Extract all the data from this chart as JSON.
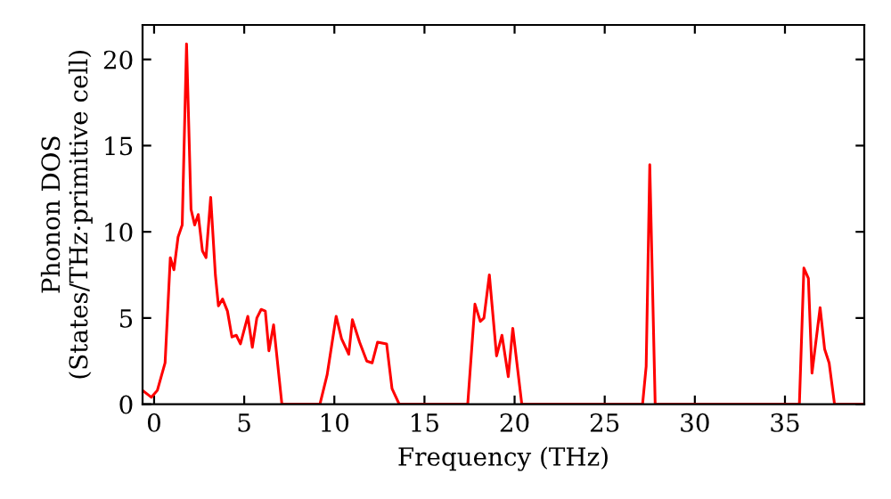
{
  "chart_data": {
    "type": "line",
    "xlabel": "Frequency (THz)",
    "ylabel": "Phonon DOS\n(States/THz·primitive cell)",
    "x": [
      -0.64,
      -0.15,
      0.18,
      0.61,
      0.9,
      1.1,
      1.33,
      1.56,
      1.8,
      2.05,
      2.25,
      2.45,
      2.68,
      2.88,
      3.14,
      3.4,
      3.57,
      3.8,
      4.07,
      4.32,
      4.56,
      4.79,
      5.2,
      5.45,
      5.7,
      5.94,
      6.17,
      6.37,
      6.63,
      7.09,
      9.2,
      9.6,
      10.1,
      10.4,
      10.8,
      11.0,
      11.4,
      11.8,
      12.1,
      12.4,
      12.9,
      13.2,
      13.6,
      17.4,
      17.8,
      18.1,
      18.3,
      18.6,
      19.0,
      19.3,
      19.65,
      19.9,
      20.4,
      27.1,
      27.3,
      27.5,
      27.8,
      35.8,
      36.05,
      36.3,
      36.5,
      36.95,
      37.2,
      37.45,
      37.75,
      39.3
    ],
    "series": [
      {
        "color": "#ff0000",
        "values": [
          0.8,
          0.4,
          0.8,
          2.4,
          8.5,
          7.8,
          9.7,
          10.4,
          20.9,
          11.3,
          10.4,
          11.0,
          8.9,
          8.5,
          12.0,
          7.5,
          5.7,
          6.1,
          5.4,
          3.9,
          4.0,
          3.5,
          5.1,
          3.3,
          5.0,
          5.5,
          5.4,
          3.1,
          4.6,
          0,
          0,
          1.7,
          5.1,
          3.8,
          2.9,
          4.9,
          3.6,
          2.5,
          2.4,
          3.6,
          3.5,
          0.9,
          0,
          0,
          5.8,
          4.8,
          5.0,
          7.5,
          2.8,
          4.0,
          1.6,
          4.4,
          0,
          0,
          2.2,
          13.9,
          0,
          0,
          7.9,
          7.3,
          1.8,
          5.6,
          3.2,
          2.4,
          0,
          0
        ]
      }
    ],
    "xlim": [
      -0.64,
      39.4
    ],
    "ylim": [
      0,
      22
    ],
    "xticks": [
      0,
      5,
      10,
      15,
      20,
      25,
      30,
      35
    ],
    "yticks": [
      0,
      5,
      10,
      15,
      20
    ],
    "grid": false,
    "marker": "none",
    "line_style": "solid"
  }
}
